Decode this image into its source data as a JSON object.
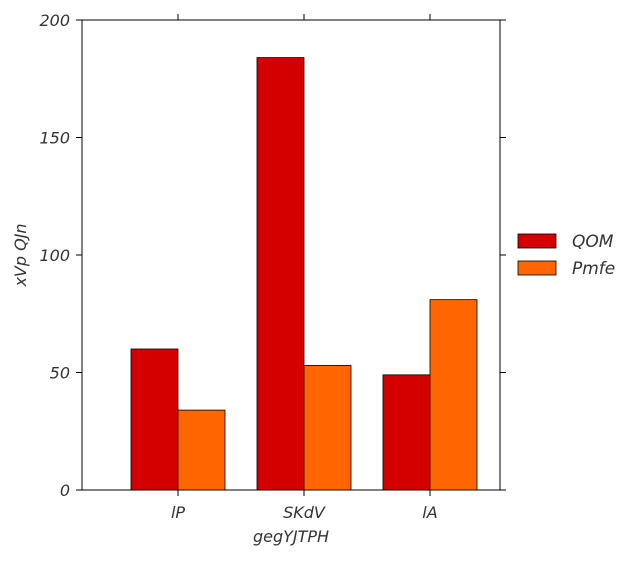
{
  "chart_data": {
    "type": "bar",
    "title": "",
    "xlabel": "gegYJTPH",
    "ylabel": "xVp QJn",
    "categories": [
      "lP",
      "SKdV",
      "lA"
    ],
    "series": [
      {
        "name": "QOM",
        "color": "#d40000",
        "values": [
          60,
          184,
          49
        ]
      },
      {
        "name": "Pmfe",
        "color": "#ff6600",
        "values": [
          34,
          53,
          81
        ]
      }
    ],
    "ylim": [
      0,
      200
    ],
    "yticks": [
      0,
      50,
      100,
      150,
      200
    ],
    "grid": false,
    "legend_position": "right"
  }
}
